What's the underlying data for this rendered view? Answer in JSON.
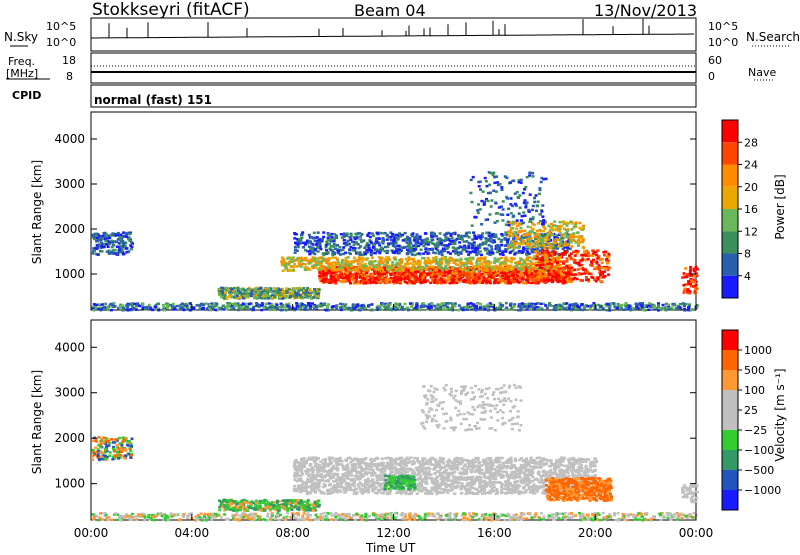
{
  "header": {
    "station": "Stokkseyri (fitACF)",
    "beam": "Beam 04",
    "date": "13/Nov/2013"
  },
  "noise_panel": {
    "left_label": "N.Sky",
    "right_label": "N.Search",
    "left_ticks": [
      "10^5",
      "10^0"
    ],
    "right_ticks": [
      "10^5",
      "10^0"
    ]
  },
  "freq_panel": {
    "left_label_1": "Freq.",
    "left_label_2": "[MHz]",
    "right_label": "Nave",
    "left_ticks": [
      "18",
      "8"
    ],
    "right_ticks": [
      "60",
      "0"
    ]
  },
  "cpid": {
    "label": "CPID",
    "value": "normal (fast) 151"
  },
  "colors": {
    "power_scale": [
      "#1a1aff",
      "#2a5fb0",
      "#3a8f5a",
      "#6ab85a",
      "#e8a800",
      "#ff8c00",
      "#ff4500",
      "#ff0000"
    ],
    "velocity_scale": [
      "#ff0000",
      "#ff6600",
      "#ff9933",
      "#c0c0c0",
      "#c0c0c0",
      "#33cc33",
      "#339966",
      "#2255bb",
      "#1a1aff"
    ]
  },
  "chart_data": [
    {
      "type": "heatmap",
      "name": "power",
      "ylabel": "Slant Range [km]",
      "y_ticks": [
        "1000",
        "2000",
        "3000",
        "4000"
      ],
      "ylim": [
        200,
        4600
      ],
      "colorbar_label": "Power [dB]",
      "colorbar_ticks": [
        "4",
        "8",
        "12",
        "16",
        "20",
        "24",
        "28"
      ]
    },
    {
      "type": "heatmap",
      "name": "velocity",
      "ylabel": "Slant Range [km]",
      "xlabel": "Time UT",
      "x_ticks": [
        "00:00",
        "04:00",
        "08:00",
        "12:00",
        "16:00",
        "20:00",
        "00:00"
      ],
      "y_ticks": [
        "1000",
        "2000",
        "3000",
        "4000"
      ],
      "ylim": [
        200,
        4600
      ],
      "colorbar_label": "Velocity [m s⁻¹]",
      "colorbar_ticks": [
        "1000",
        "500",
        "100",
        "25",
        "−25",
        "−100",
        "−500",
        "−1000"
      ]
    }
  ]
}
